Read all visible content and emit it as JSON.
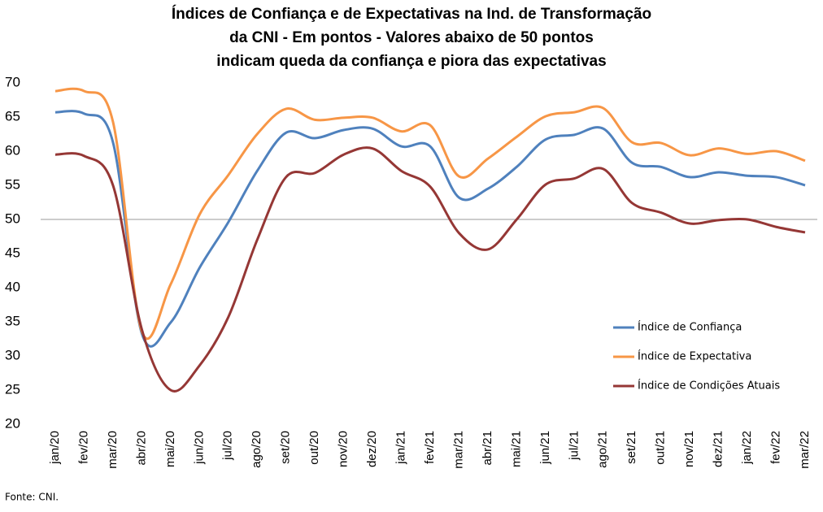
{
  "chart_data": {
    "type": "line",
    "title": [
      "Índices de Confiança e de Expectativas na Ind. de Transformação",
      "da CNI - Em pontos - Valores abaixo de 50 pontos",
      "indicam queda da confiança e piora das expectativas"
    ],
    "source": "Fonte: CNI.",
    "categories": [
      "jan/20",
      "fev/20",
      "mar/20",
      "abr/20",
      "mai/20",
      "jun/20",
      "jul/20",
      "ago/20",
      "set/20",
      "out/20",
      "nov/20",
      "dez/20",
      "jan/21",
      "fev/21",
      "mar/21",
      "abr/21",
      "mai/21",
      "jun/21",
      "jul/21",
      "ago/21",
      "set/21",
      "out/21",
      "nov/21",
      "dez/21",
      "jan/22",
      "fev/22",
      "mar/22"
    ],
    "series": [
      {
        "name": "Índice de Confiança",
        "color": "#4f81bd",
        "values": [
          65.7,
          65.5,
          61.3,
          33.3,
          34.9,
          42.9,
          49.6,
          57.1,
          62.7,
          61.9,
          63.1,
          63.3,
          60.7,
          60.7,
          53.2,
          54.5,
          57.7,
          61.7,
          62.4,
          63.3,
          58.3,
          57.7,
          56.2,
          56.9,
          56.4,
          56.2,
          55.0
        ]
      },
      {
        "name": "Índice de Expectativa",
        "color": "#f79646",
        "values": [
          68.8,
          68.8,
          64.3,
          33.6,
          40.5,
          50.7,
          56.5,
          62.5,
          66.2,
          64.6,
          64.9,
          64.9,
          62.9,
          63.8,
          56.3,
          58.9,
          62.1,
          65.1,
          65.7,
          66.3,
          61.3,
          61.2,
          59.4,
          60.4,
          59.6,
          60.0,
          58.6
        ]
      },
      {
        "name": "Índice de Condições Atuais",
        "color": "#953735",
        "values": [
          59.5,
          59.3,
          55.0,
          33.9,
          25.0,
          28.6,
          35.7,
          47.0,
          56.2,
          56.8,
          59.5,
          60.4,
          57.1,
          54.8,
          48.0,
          45.6,
          50.0,
          55.1,
          56.0,
          57.4,
          52.4,
          51.0,
          49.4,
          49.9,
          50.0,
          48.9,
          48.1
        ]
      }
    ],
    "ylim": [
      20,
      70
    ],
    "yticks": [
      20,
      25,
      30,
      35,
      40,
      45,
      50,
      55,
      60,
      65,
      70
    ],
    "reference_line": 50,
    "grid": false,
    "legend": "right"
  }
}
